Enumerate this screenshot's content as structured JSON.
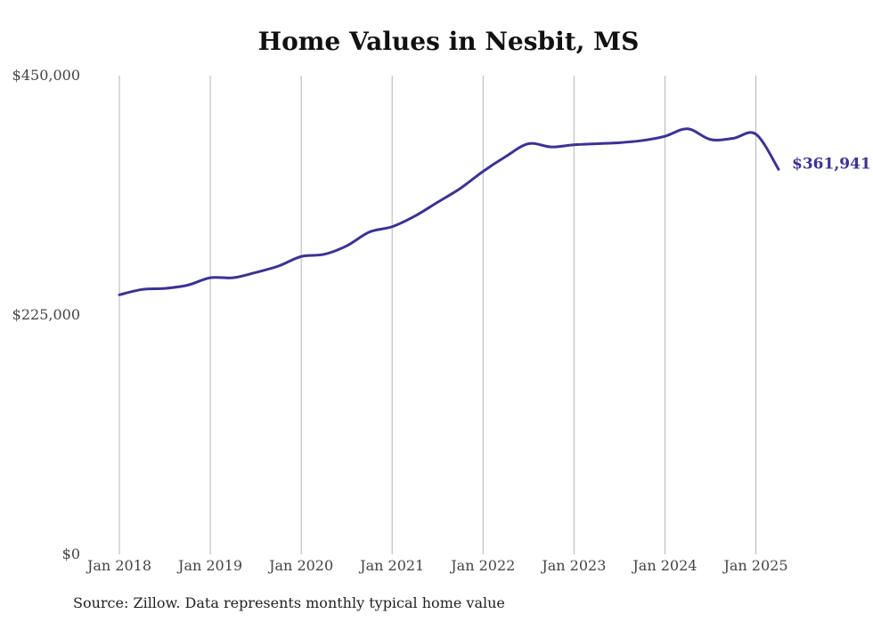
{
  "chart_data": {
    "type": "line",
    "title": "Home Values in Nesbit, MS",
    "xlabel": "",
    "ylabel": "",
    "x_ticks": [
      "Jan 2018",
      "Jan 2019",
      "Jan 2020",
      "Jan 2021",
      "Jan 2022",
      "Jan 2023",
      "Jan 2024",
      "Jan 2025"
    ],
    "y_ticks": [
      "$0",
      "$225,000",
      "$450,000"
    ],
    "y_tick_values": [
      0,
      225000,
      450000
    ],
    "ylim": [
      0,
      450000
    ],
    "xlim": [
      "2018-01",
      "2025-04"
    ],
    "grid": "vertical lines at x ticks",
    "series": [
      {
        "color": "#3b3393",
        "x": [
          "2018-01",
          "2018-04",
          "2018-07",
          "2018-10",
          "2019-01",
          "2019-04",
          "2019-07",
          "2019-10",
          "2020-01",
          "2020-04",
          "2020-07",
          "2020-10",
          "2021-01",
          "2021-04",
          "2021-07",
          "2021-10",
          "2022-01",
          "2022-04",
          "2022-07",
          "2022-10",
          "2023-01",
          "2023-04",
          "2023-07",
          "2023-10",
          "2024-01",
          "2024-04",
          "2024-07",
          "2024-10",
          "2025-01",
          "2025-04"
        ],
        "values": [
          244000,
          249000,
          250000,
          253000,
          260000,
          260000,
          265000,
          271000,
          280000,
          282000,
          290000,
          303000,
          308000,
          318000,
          331000,
          344000,
          360000,
          374000,
          386000,
          383000,
          385000,
          386000,
          387000,
          389000,
          393000,
          400000,
          390000,
          391000,
          395000,
          361941
        ],
        "end_label": "$361,941"
      }
    ]
  },
  "source": "Source: Zillow. Data represents monthly typical home value",
  "colors": {
    "line": "#3b3393",
    "grid": "#b5b5b5",
    "title": "#111111"
  }
}
